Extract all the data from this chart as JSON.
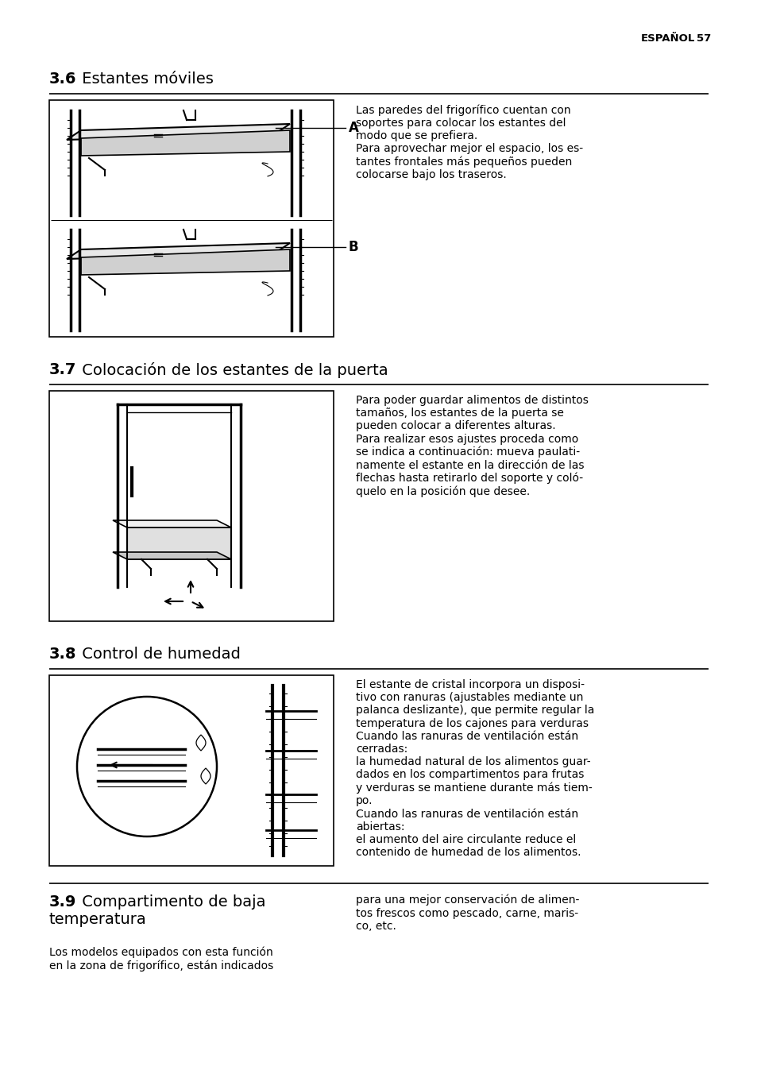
{
  "page_header_text": "ESPAÑOL",
  "page_number": "57",
  "background_color": "#ffffff",
  "text_color": "#000000",
  "section_36_number": "3.6",
  "section_36_title": " Estantes móviles",
  "section_36_desc": "Las paredes del frigorífico cuentan con\nsoportes para colocar los estantes del\nmodo que se prefiera.\nPara aprovechar mejor el espacio, los es-\ntantes frontales más pequeños pueden\ncolocarse bajo los traseros.",
  "section_37_number": "3.7",
  "section_37_title": " Colocación de los estantes de la puerta",
  "section_37_desc": "Para poder guardar alimentos de distintos\ntamaños, los estantes de la puerta se\npueden colocar a diferentes alturas.\nPara realizar esos ajustes proceda como\nse indica a continuación: mueva paulati-\nnamente el estante en la dirección de las\nflechas hasta retirarlo del soporte y coló-\nquelo en la posición que desee.",
  "section_38_number": "3.8",
  "section_38_title": " Control de humedad",
  "section_38_desc": "El estante de cristal incorpora un disposi-\ntivo con ranuras (ajustables mediante un\npalanca deslizante), que permite regular la\ntemperatura de los cajones para verduras\nCuando las ranuras de ventilación están\ncerradas:\nla humedad natural de los alimentos guar-\ndados en los compartimentos para frutas\ny verduras se mantiene durante más tiem-\npo.\nCuando las ranuras de ventilación están\nabiertas:\nel aumento del aire circulante reduce el\ncontenido de humedad de los alimentos.",
  "section_39_number": "3.9",
  "section_39_title_l1": " Compartimento de baja",
  "section_39_title_l2": "temperatura",
  "section_39_left": "Los modelos equipados con esta función\nen la zona de frigorífico, están indicados",
  "section_39_right": "para una mejor conservación de alimen-\ntos frescos como pescado, carne, maris-\nco, etc.",
  "header_fontsize": 9.5,
  "section_num_fontsize": 14,
  "section_title_fontsize": 14,
  "body_fontsize": 10,
  "small_fontsize": 10
}
